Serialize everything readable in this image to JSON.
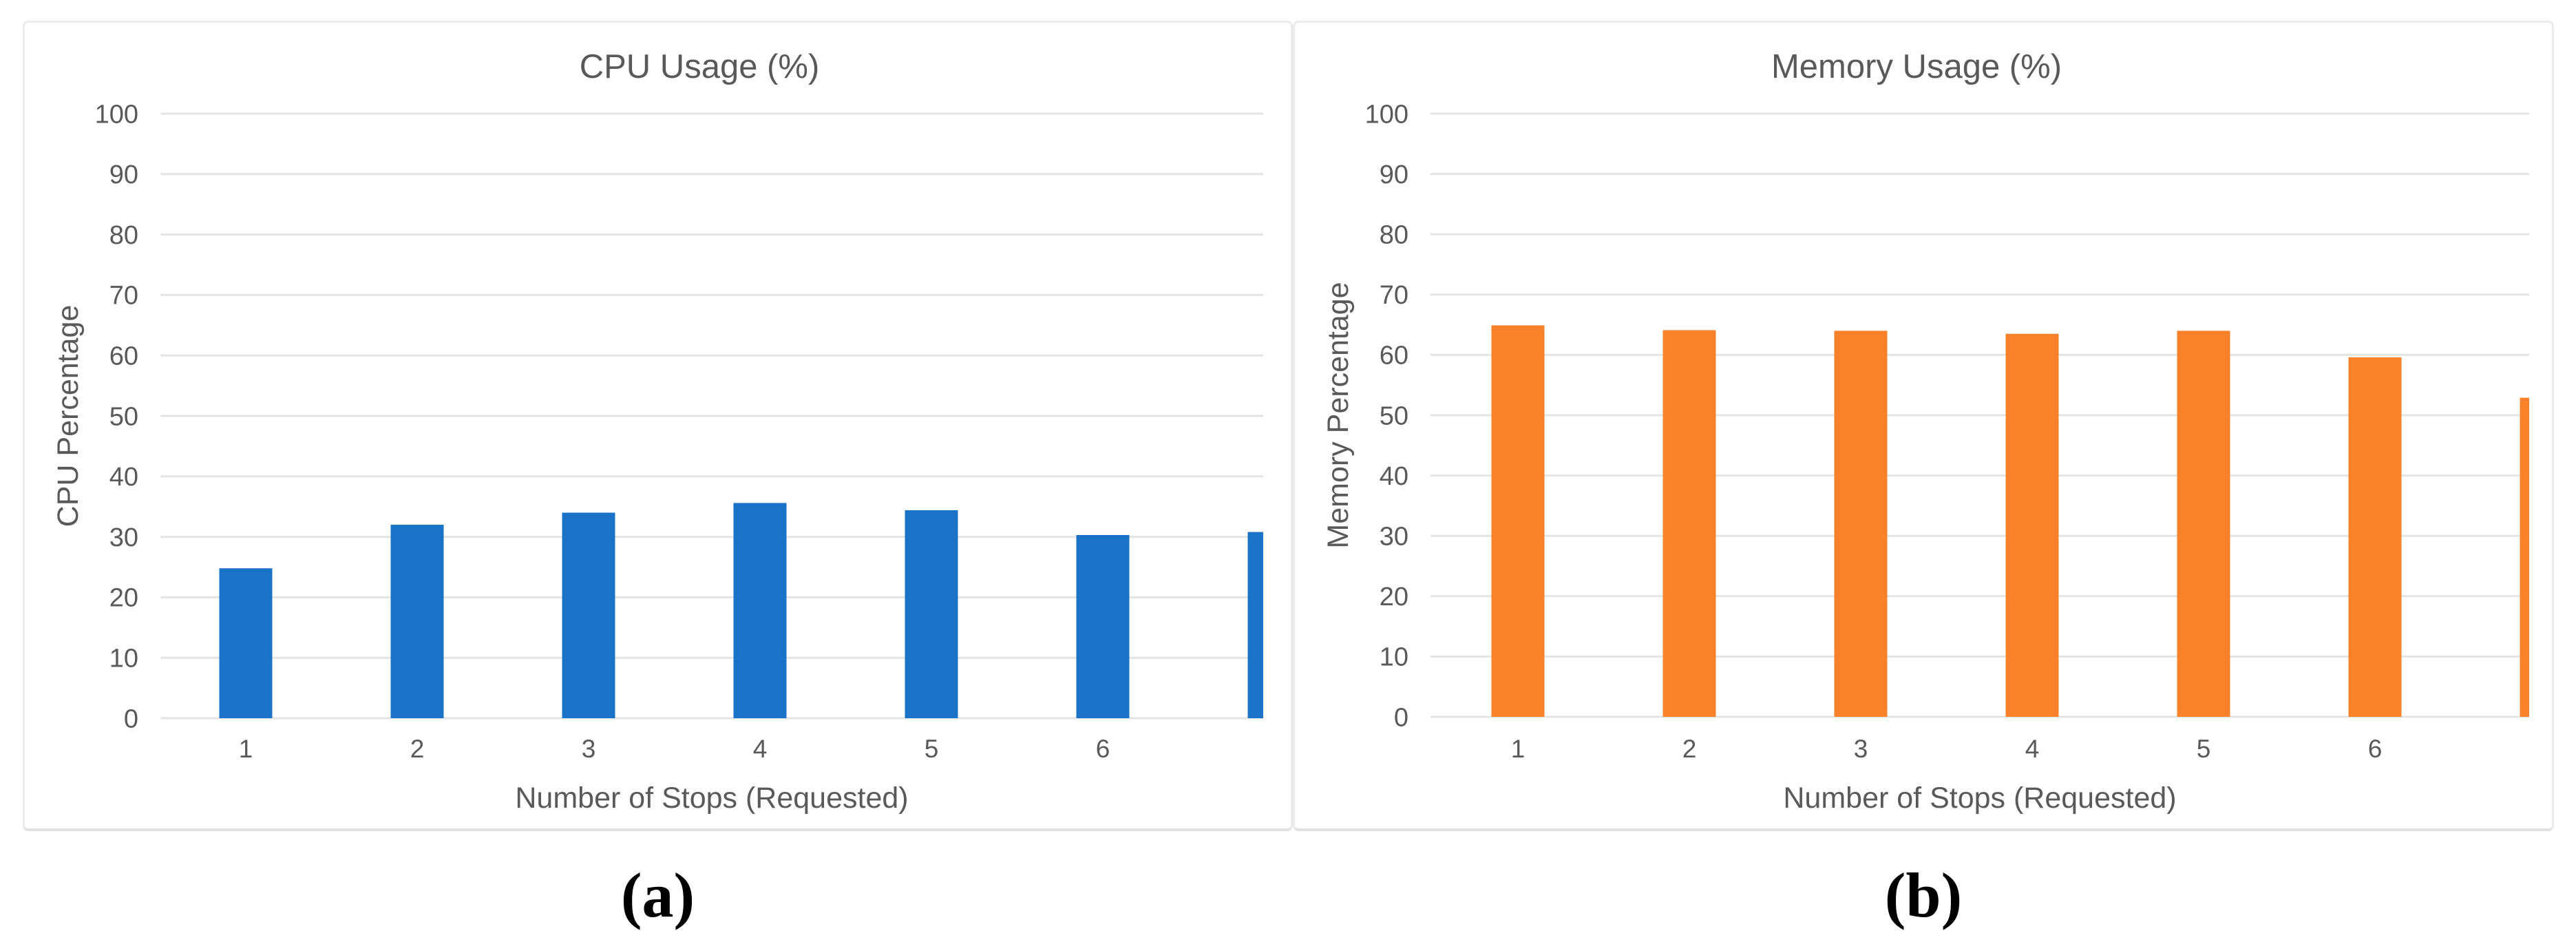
{
  "figure": {
    "caption_a": "(a)",
    "caption_b": "(b)",
    "background_color": "#ffffff",
    "panel_border_color": "#ebebeb",
    "text_color": "#595959",
    "gridline_color": "#e4e4e4"
  },
  "chart_data": [
    {
      "type": "bar",
      "title": "CPU Usage (%)",
      "xlabel": "Number of Stops (Requested)",
      "ylabel": "CPU Percentage",
      "categories": [
        "1",
        "2",
        "3",
        "4",
        "5",
        "6"
      ],
      "values": [
        24.8,
        32,
        34,
        35.6,
        34.4,
        30.3,
        30.8
      ],
      "ylim": [
        0,
        100
      ],
      "ytick_step": 10,
      "yticks": [
        0,
        10,
        20,
        30,
        40,
        50,
        60,
        70,
        80,
        90,
        100
      ],
      "bar_color": "#1b73c8",
      "grid": true,
      "legend": "none",
      "layout_note": "seventh bar is partially clipped at the right edge of the plot area and has no visible x tick label"
    },
    {
      "type": "bar",
      "title": "Memory Usage (%)",
      "xlabel": "Number of Stops (Requested)",
      "ylabel": "Memory Percentage",
      "categories": [
        "1",
        "2",
        "3",
        "4",
        "5",
        "6"
      ],
      "values": [
        64.9,
        64.1,
        64,
        63.5,
        64,
        59.6,
        52.9
      ],
      "ylim": [
        0,
        100
      ],
      "ytick_step": 10,
      "yticks": [
        0,
        10,
        20,
        30,
        40,
        50,
        60,
        70,
        80,
        90,
        100
      ],
      "bar_color": "#f8812a",
      "grid": true,
      "legend": "none",
      "layout_note": "seventh bar is partially clipped at the right edge of the plot area and has no visible x tick label"
    }
  ]
}
